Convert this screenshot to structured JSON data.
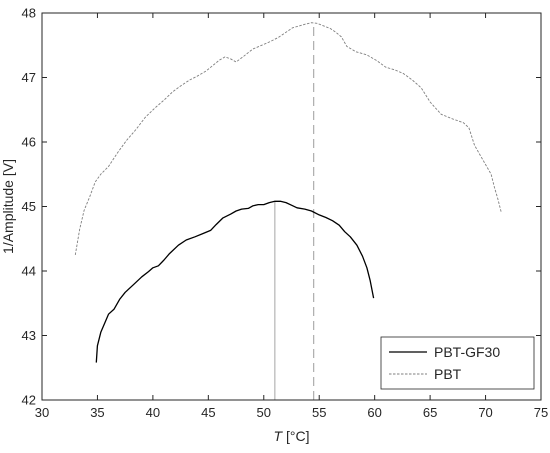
{
  "chart_data": {
    "type": "line",
    "xlabel_var": "T",
    "xlabel_unit": " [°C]",
    "ylabel": "1/Amplitude [V]",
    "xlim": [
      30,
      75
    ],
    "ylim": [
      42,
      48
    ],
    "xticks": [
      30,
      35,
      40,
      45,
      50,
      55,
      60,
      65,
      70,
      75
    ],
    "yticks": [
      42,
      43,
      44,
      45,
      46,
      47,
      48
    ],
    "grid": false,
    "legend": "bottom-right",
    "series": [
      {
        "name": "PBT-GF30",
        "style": "solid",
        "color": "#000000",
        "x": [
          34.9,
          35.0,
          35.3,
          35.7,
          36.0,
          36.5,
          37.0,
          37.5,
          38.2,
          39.0,
          39.6,
          40.0,
          40.5,
          41.0,
          41.5,
          42.3,
          43.0,
          43.8,
          44.5,
          45.2,
          45.7,
          46.3,
          47.0,
          47.5,
          48.0,
          48.6,
          49.0,
          49.5,
          50.0,
          50.5,
          51.0,
          51.5,
          52.0,
          52.5,
          53.0,
          53.7,
          54.3,
          55.0,
          55.6,
          56.2,
          56.8,
          57.3,
          57.8,
          58.4,
          58.9,
          59.3,
          59.6,
          59.9
        ],
        "y": [
          42.58,
          42.84,
          43.05,
          43.21,
          43.33,
          43.41,
          43.56,
          43.67,
          43.78,
          43.91,
          43.99,
          44.05,
          44.08,
          44.17,
          44.27,
          44.4,
          44.48,
          44.53,
          44.58,
          44.63,
          44.72,
          44.82,
          44.88,
          44.93,
          44.96,
          44.97,
          45.01,
          45.03,
          45.03,
          45.06,
          45.08,
          45.08,
          45.06,
          45.02,
          44.98,
          44.96,
          44.93,
          44.87,
          44.83,
          44.78,
          44.71,
          44.61,
          44.53,
          44.4,
          44.23,
          44.05,
          43.85,
          43.58
        ]
      },
      {
        "name": "PBT",
        "style": "dashed",
        "color": "#7f7f7f",
        "x": [
          33.0,
          33.4,
          33.8,
          34.3,
          34.8,
          35.3,
          36.0,
          36.8,
          37.6,
          38.5,
          39.3,
          40.2,
          41.0,
          41.8,
          42.6,
          43.3,
          44.0,
          44.8,
          45.5,
          46.0,
          46.5,
          47.0,
          47.5,
          48.2,
          49.0,
          49.8,
          50.5,
          51.3,
          52.0,
          52.6,
          53.2,
          53.8,
          54.3,
          54.8,
          55.4,
          56.0,
          56.5,
          57.0,
          57.5,
          58.3,
          59.3,
          60.2,
          61.0,
          61.8,
          62.6,
          63.4,
          64.2,
          65.0,
          66.0,
          67.0,
          68.0,
          68.5,
          69.0,
          69.5,
          70.0,
          70.5,
          70.8,
          71.1,
          71.4
        ],
        "y": [
          44.25,
          44.65,
          44.94,
          45.15,
          45.38,
          45.5,
          45.62,
          45.83,
          46.02,
          46.2,
          46.38,
          46.53,
          46.65,
          46.78,
          46.88,
          46.96,
          47.02,
          47.1,
          47.2,
          47.27,
          47.32,
          47.29,
          47.24,
          47.33,
          47.44,
          47.5,
          47.55,
          47.62,
          47.7,
          47.77,
          47.8,
          47.83,
          47.85,
          47.84,
          47.8,
          47.76,
          47.7,
          47.63,
          47.48,
          47.4,
          47.35,
          47.26,
          47.16,
          47.12,
          47.06,
          46.96,
          46.84,
          46.62,
          46.43,
          46.36,
          46.3,
          46.22,
          45.95,
          45.8,
          45.65,
          45.5,
          45.3,
          45.12,
          44.92
        ]
      }
    ],
    "annotations": [
      {
        "type": "vline",
        "x": 51.0,
        "y_from": 42,
        "y_to": 45.08,
        "style": "solid",
        "color": "#a6a6a6"
      },
      {
        "type": "vline",
        "x": 54.5,
        "y_from": 42,
        "y_to": 47.85,
        "style": "dashed",
        "color": "#a6a6a6"
      }
    ]
  }
}
